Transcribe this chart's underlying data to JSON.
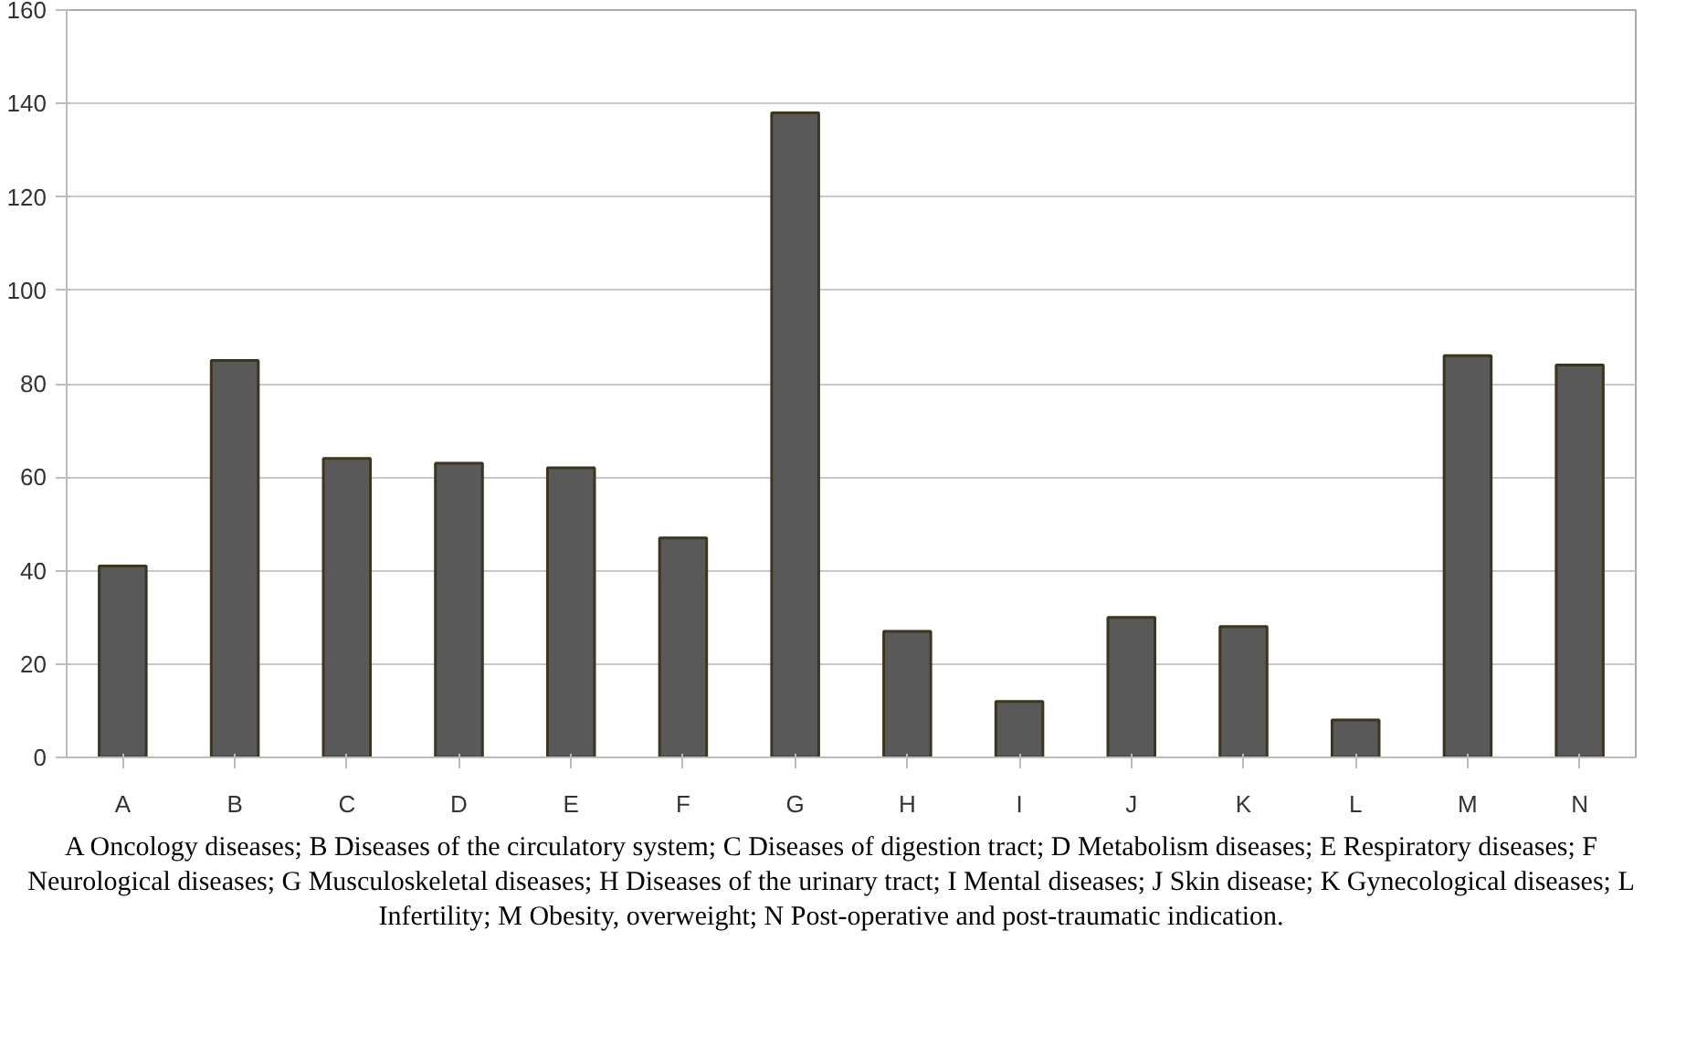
{
  "chart_data": {
    "type": "bar",
    "categories": [
      "A",
      "B",
      "C",
      "D",
      "E",
      "F",
      "G",
      "H",
      "I",
      "J",
      "K",
      "L",
      "M",
      "N"
    ],
    "values": [
      41,
      85,
      64,
      63,
      62,
      47,
      138,
      27,
      12,
      30,
      28,
      8,
      86,
      84
    ],
    "color": "#595959",
    "ylim": [
      0,
      160
    ],
    "yticks": [
      0,
      20,
      40,
      60,
      80,
      100,
      120,
      140,
      160
    ],
    "grid": "y",
    "annotations": [
      "A Oncology diseases; B Diseases of the circulatory system; C Diseases of digestion tract; D Metabolism diseases; E Respiratory diseases; F Neurological diseases; G Musculoskeletal diseases; H Diseases of the urinary tract; I Mental diseases; J Skin disease; K Gynecological diseases; L Infertility; M Obesity, overweight; N Post-operative and post-traumatic indication."
    ]
  }
}
